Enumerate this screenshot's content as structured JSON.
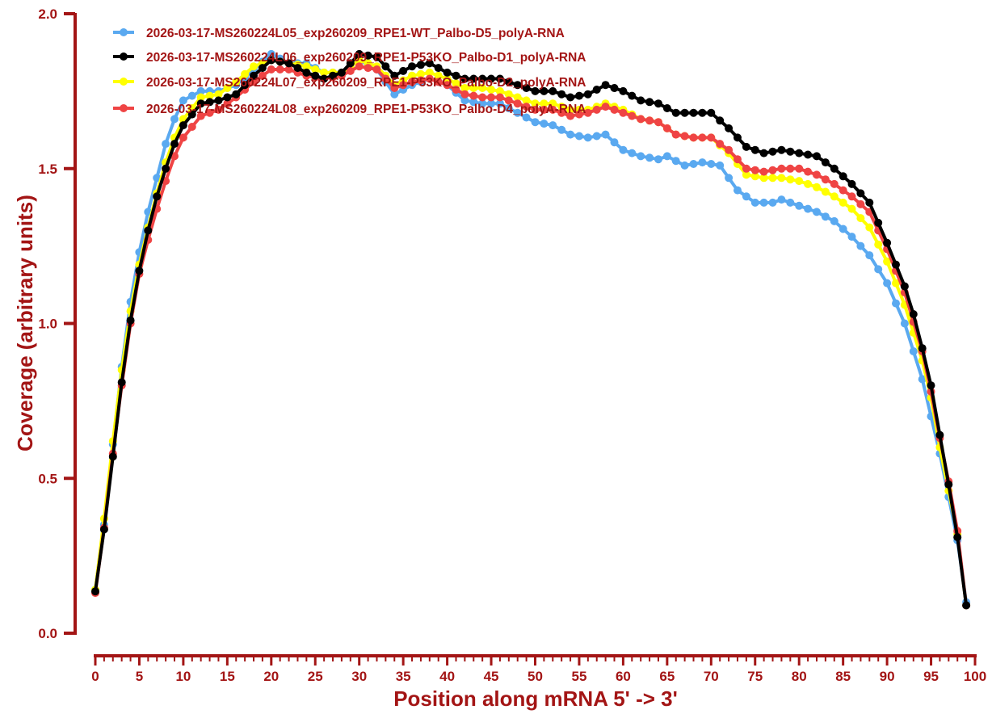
{
  "chart_data": {
    "type": "line",
    "title": "",
    "xlabel": "Position along mRNA 5' -> 3'",
    "ylabel": "Coverage (arbitrary units)",
    "xlim": [
      0,
      100
    ],
    "ylim": [
      0,
      2.0
    ],
    "xticks": [
      "0",
      "5",
      "10",
      "15",
      "20",
      "25",
      "30",
      "35",
      "40",
      "45",
      "50",
      "55",
      "60",
      "65",
      "70",
      "75",
      "80",
      "85",
      "90",
      "95",
      "100"
    ],
    "yticks": [
      "0.0",
      "0.5",
      "1.0",
      "1.5",
      "2.0"
    ],
    "grid": false,
    "legend_position": "top-left",
    "axis_color": "#A31515",
    "series": [
      {
        "name": "2026-03-17-MS260224L05_exp260209_RPE1-WT_Palbo-D5_polyA-RNA",
        "color": "#5AA9F0",
        "anchors": [
          [
            0,
            0.14
          ],
          [
            1,
            0.35
          ],
          [
            2,
            0.61
          ],
          [
            3,
            0.86
          ],
          [
            4,
            1.07
          ],
          [
            5,
            1.23
          ],
          [
            6,
            1.36
          ],
          [
            7,
            1.47
          ],
          [
            8,
            1.58
          ],
          [
            9,
            1.66
          ],
          [
            10,
            1.72
          ],
          [
            12,
            1.75
          ],
          [
            14,
            1.75
          ],
          [
            16,
            1.77
          ],
          [
            18,
            1.82
          ],
          [
            20,
            1.87
          ],
          [
            22,
            1.84
          ],
          [
            24,
            1.84
          ],
          [
            26,
            1.81
          ],
          [
            28,
            1.81
          ],
          [
            30,
            1.85
          ],
          [
            32,
            1.82
          ],
          [
            34,
            1.74
          ],
          [
            36,
            1.77
          ],
          [
            38,
            1.79
          ],
          [
            40,
            1.77
          ],
          [
            42,
            1.72
          ],
          [
            44,
            1.71
          ],
          [
            46,
            1.71
          ],
          [
            48,
            1.68
          ],
          [
            50,
            1.65
          ],
          [
            52,
            1.64
          ],
          [
            54,
            1.61
          ],
          [
            56,
            1.6
          ],
          [
            58,
            1.61
          ],
          [
            60,
            1.56
          ],
          [
            62,
            1.54
          ],
          [
            64,
            1.53
          ],
          [
            65,
            1.54
          ],
          [
            67,
            1.51
          ],
          [
            69,
            1.52
          ],
          [
            71,
            1.51
          ],
          [
            73,
            1.43
          ],
          [
            75,
            1.39
          ],
          [
            77,
            1.39
          ],
          [
            78,
            1.4
          ],
          [
            80,
            1.38
          ],
          [
            82,
            1.36
          ],
          [
            84,
            1.33
          ],
          [
            86,
            1.28
          ],
          [
            88,
            1.22
          ],
          [
            90,
            1.13
          ],
          [
            92,
            1.0
          ],
          [
            94,
            0.82
          ],
          [
            95,
            0.7
          ],
          [
            96,
            0.58
          ],
          [
            97,
            0.44
          ],
          [
            98,
            0.3
          ],
          [
            99,
            0.1
          ]
        ]
      },
      {
        "name": "2026-03-17-MS260224L06_exp260209_RPE1-P53KO_Palbo-D1_polyA-RNA",
        "color": "#000000",
        "anchors": [
          [
            0,
            0.135
          ],
          [
            1,
            0.335
          ],
          [
            2,
            0.57
          ],
          [
            3,
            0.81
          ],
          [
            4,
            1.01
          ],
          [
            5,
            1.17
          ],
          [
            6,
            1.3
          ],
          [
            7,
            1.41
          ],
          [
            8,
            1.5
          ],
          [
            9,
            1.58
          ],
          [
            10,
            1.64
          ],
          [
            12,
            1.71
          ],
          [
            14,
            1.72
          ],
          [
            16,
            1.74
          ],
          [
            18,
            1.8
          ],
          [
            20,
            1.85
          ],
          [
            22,
            1.84
          ],
          [
            24,
            1.81
          ],
          [
            26,
            1.79
          ],
          [
            28,
            1.81
          ],
          [
            30,
            1.87
          ],
          [
            32,
            1.86
          ],
          [
            34,
            1.8
          ],
          [
            36,
            1.83
          ],
          [
            38,
            1.84
          ],
          [
            40,
            1.81
          ],
          [
            42,
            1.79
          ],
          [
            44,
            1.79
          ],
          [
            46,
            1.79
          ],
          [
            48,
            1.77
          ],
          [
            50,
            1.75
          ],
          [
            52,
            1.75
          ],
          [
            54,
            1.73
          ],
          [
            56,
            1.74
          ],
          [
            58,
            1.77
          ],
          [
            60,
            1.75
          ],
          [
            62,
            1.72
          ],
          [
            64,
            1.71
          ],
          [
            66,
            1.68
          ],
          [
            68,
            1.68
          ],
          [
            70,
            1.68
          ],
          [
            72,
            1.63
          ],
          [
            74,
            1.57
          ],
          [
            76,
            1.55
          ],
          [
            78,
            1.56
          ],
          [
            80,
            1.55
          ],
          [
            82,
            1.54
          ],
          [
            84,
            1.5
          ],
          [
            86,
            1.45
          ],
          [
            88,
            1.39
          ],
          [
            90,
            1.26
          ],
          [
            92,
            1.12
          ],
          [
            93,
            1.03
          ],
          [
            94,
            0.92
          ],
          [
            95,
            0.8
          ],
          [
            96,
            0.64
          ],
          [
            97,
            0.48
          ],
          [
            98,
            0.31
          ],
          [
            99,
            0.09
          ]
        ]
      },
      {
        "name": "2026-03-17-MS260224L07_exp260209_RPE1-P53KO_Palbo-D2_polyA-RNA",
        "color": "#FFFF00",
        "anchors": [
          [
            0,
            0.14
          ],
          [
            1,
            0.37
          ],
          [
            2,
            0.62
          ],
          [
            3,
            0.85
          ],
          [
            4,
            1.04
          ],
          [
            5,
            1.19
          ],
          [
            6,
            1.31
          ],
          [
            7,
            1.42
          ],
          [
            8,
            1.52
          ],
          [
            9,
            1.6
          ],
          [
            10,
            1.66
          ],
          [
            12,
            1.73
          ],
          [
            14,
            1.74
          ],
          [
            16,
            1.78
          ],
          [
            18,
            1.83
          ],
          [
            20,
            1.85
          ],
          [
            22,
            1.84
          ],
          [
            24,
            1.83
          ],
          [
            26,
            1.81
          ],
          [
            28,
            1.81
          ],
          [
            30,
            1.85
          ],
          [
            32,
            1.83
          ],
          [
            34,
            1.77
          ],
          [
            36,
            1.8
          ],
          [
            38,
            1.81
          ],
          [
            40,
            1.79
          ],
          [
            42,
            1.76
          ],
          [
            44,
            1.76
          ],
          [
            46,
            1.75
          ],
          [
            48,
            1.73
          ],
          [
            50,
            1.71
          ],
          [
            52,
            1.71
          ],
          [
            54,
            1.69
          ],
          [
            56,
            1.69
          ],
          [
            58,
            1.71
          ],
          [
            60,
            1.69
          ],
          [
            62,
            1.66
          ],
          [
            64,
            1.65
          ],
          [
            66,
            1.61
          ],
          [
            68,
            1.6
          ],
          [
            70,
            1.6
          ],
          [
            72,
            1.55
          ],
          [
            74,
            1.48
          ],
          [
            76,
            1.47
          ],
          [
            78,
            1.47
          ],
          [
            80,
            1.46
          ],
          [
            82,
            1.44
          ],
          [
            84,
            1.41
          ],
          [
            86,
            1.37
          ],
          [
            88,
            1.31
          ],
          [
            90,
            1.2
          ],
          [
            92,
            1.06
          ],
          [
            94,
            0.88
          ],
          [
            95,
            0.76
          ],
          [
            96,
            0.6
          ],
          [
            97,
            0.46
          ],
          [
            98,
            0.32
          ],
          [
            99,
            0.09
          ]
        ]
      },
      {
        "name": "2026-03-17-MS260224L08_exp260209_RPE1-P53KO_Palbo-D4_polyA-RNA",
        "color": "#EF4444",
        "anchors": [
          [
            0,
            0.13
          ],
          [
            1,
            0.34
          ],
          [
            2,
            0.58
          ],
          [
            3,
            0.8
          ],
          [
            4,
            1.0
          ],
          [
            5,
            1.16
          ],
          [
            6,
            1.27
          ],
          [
            7,
            1.37
          ],
          [
            8,
            1.46
          ],
          [
            9,
            1.54
          ],
          [
            10,
            1.6
          ],
          [
            12,
            1.67
          ],
          [
            14,
            1.69
          ],
          [
            16,
            1.73
          ],
          [
            18,
            1.78
          ],
          [
            20,
            1.82
          ],
          [
            22,
            1.82
          ],
          [
            24,
            1.8
          ],
          [
            26,
            1.79
          ],
          [
            28,
            1.8
          ],
          [
            30,
            1.83
          ],
          [
            32,
            1.82
          ],
          [
            34,
            1.76
          ],
          [
            36,
            1.78
          ],
          [
            38,
            1.79
          ],
          [
            40,
            1.77
          ],
          [
            42,
            1.74
          ],
          [
            44,
            1.73
          ],
          [
            46,
            1.73
          ],
          [
            48,
            1.71
          ],
          [
            50,
            1.69
          ],
          [
            52,
            1.69
          ],
          [
            54,
            1.67
          ],
          [
            56,
            1.68
          ],
          [
            58,
            1.7
          ],
          [
            60,
            1.68
          ],
          [
            62,
            1.66
          ],
          [
            64,
            1.65
          ],
          [
            66,
            1.61
          ],
          [
            68,
            1.6
          ],
          [
            70,
            1.6
          ],
          [
            72,
            1.56
          ],
          [
            74,
            1.5
          ],
          [
            76,
            1.49
          ],
          [
            78,
            1.5
          ],
          [
            80,
            1.5
          ],
          [
            82,
            1.48
          ],
          [
            84,
            1.45
          ],
          [
            86,
            1.41
          ],
          [
            88,
            1.36
          ],
          [
            90,
            1.24
          ],
          [
            92,
            1.1
          ],
          [
            94,
            0.91
          ],
          [
            95,
            0.78
          ],
          [
            96,
            0.63
          ],
          [
            97,
            0.49
          ],
          [
            98,
            0.33
          ],
          [
            99,
            0.09
          ]
        ]
      }
    ]
  }
}
